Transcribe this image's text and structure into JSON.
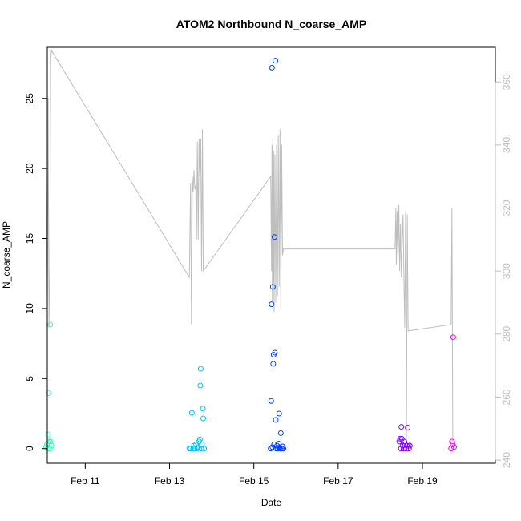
{
  "chart_data": {
    "type": "scatter",
    "title": "ATOM2 Northbound N_coarse_AMP",
    "xlabel": "Date",
    "ylabel": "N_coarse_AMP",
    "y2label": "",
    "xlim": [
      10.1,
      20.73
    ],
    "ylim": [
      -1.05,
      28.65
    ],
    "y2lim": [
      239,
      371
    ],
    "x_ticks": [
      {
        "value": 11,
        "label": "Feb 11"
      },
      {
        "value": 13,
        "label": "Feb 13"
      },
      {
        "value": 15,
        "label": "Feb 15"
      },
      {
        "value": 17,
        "label": "Feb 17"
      },
      {
        "value": 19,
        "label": "Feb 19"
      }
    ],
    "y_ticks": [
      0,
      5,
      10,
      15,
      20,
      25
    ],
    "y2_ticks": [
      240,
      260,
      280,
      300,
      320,
      340,
      360
    ],
    "line_color": "#bebebe",
    "grid": false,
    "series": [
      {
        "color": "#3fffbf",
        "points": [
          [
            10.07,
            0.1
          ],
          [
            10.09,
            0.3
          ],
          [
            10.11,
            0.0
          ],
          [
            10.12,
            1.0
          ],
          [
            10.13,
            0.4
          ],
          [
            10.14,
            3.95
          ],
          [
            10.15,
            0.5
          ],
          [
            10.16,
            0.0
          ],
          [
            10.17,
            8.85
          ],
          [
            10.18,
            0.5
          ],
          [
            10.2,
            0.2
          ]
        ]
      },
      {
        "color": "#00bfff",
        "points": [
          [
            13.47,
            0.0
          ],
          [
            13.5,
            0.0
          ],
          [
            13.53,
            2.55
          ],
          [
            13.56,
            0.0
          ],
          [
            13.58,
            0.2
          ],
          [
            13.6,
            0.0
          ],
          [
            13.63,
            0.3
          ],
          [
            13.66,
            0.0
          ],
          [
            13.68,
            0.1
          ],
          [
            13.7,
            0.5
          ],
          [
            13.72,
            0.65
          ],
          [
            13.73,
            4.5
          ],
          [
            13.74,
            5.7
          ],
          [
            13.75,
            0.0
          ],
          [
            13.77,
            0.3
          ],
          [
            13.79,
            2.85
          ],
          [
            13.8,
            2.15
          ],
          [
            13.82,
            0.0
          ]
        ]
      },
      {
        "color": "#003fff",
        "points": [
          [
            15.4,
            0.0
          ],
          [
            15.41,
            3.4
          ],
          [
            15.42,
            10.3
          ],
          [
            15.43,
            27.2
          ],
          [
            15.44,
            0.1
          ],
          [
            15.45,
            11.55
          ],
          [
            15.46,
            6.05
          ],
          [
            15.47,
            6.7
          ],
          [
            15.48,
            0.3
          ],
          [
            15.49,
            15.1
          ],
          [
            15.5,
            6.85
          ],
          [
            15.51,
            27.7
          ],
          [
            15.52,
            2.05
          ],
          [
            15.53,
            0.0
          ],
          [
            15.55,
            0.2
          ],
          [
            15.57,
            0.0
          ],
          [
            15.59,
            0.35
          ],
          [
            15.6,
            2.5
          ],
          [
            15.61,
            0.1
          ],
          [
            15.62,
            0.0
          ],
          [
            15.64,
            1.1
          ],
          [
            15.66,
            0.0
          ],
          [
            15.68,
            0.15
          ],
          [
            15.7,
            0.0
          ]
        ]
      },
      {
        "color": "#7f00ff",
        "points": [
          [
            18.45,
            0.5
          ],
          [
            18.47,
            0.7
          ],
          [
            18.49,
            0.0
          ],
          [
            18.5,
            1.55
          ],
          [
            18.51,
            0.7
          ],
          [
            18.53,
            0.2
          ],
          [
            18.55,
            0.0
          ],
          [
            18.57,
            0.5
          ],
          [
            18.59,
            0.3
          ],
          [
            18.61,
            0.0
          ],
          [
            18.63,
            0.2
          ],
          [
            18.65,
            1.5
          ],
          [
            18.66,
            0.3
          ],
          [
            18.68,
            0.0
          ],
          [
            18.7,
            0.2
          ]
        ]
      },
      {
        "color": "#ff00ff",
        "points": [
          [
            19.68,
            0.0
          ],
          [
            19.7,
            0.5
          ],
          [
            19.72,
            0.3
          ],
          [
            19.73,
            7.95
          ],
          [
            19.75,
            0.1
          ]
        ]
      }
    ],
    "line": [
      [
        10.07,
        335
      ],
      [
        10.1,
        290
      ],
      [
        10.12,
        355
      ],
      [
        10.14,
        282
      ],
      [
        10.16,
        300
      ],
      [
        10.18,
        367
      ],
      [
        10.2,
        370
      ],
      [
        13.47,
        298
      ],
      [
        13.5,
        328
      ],
      [
        13.52,
        283
      ],
      [
        13.54,
        330
      ],
      [
        13.56,
        325
      ],
      [
        13.58,
        332
      ],
      [
        13.6,
        326
      ],
      [
        13.62,
        327
      ],
      [
        13.64,
        310
      ],
      [
        13.66,
        341
      ],
      [
        13.68,
        310
      ],
      [
        13.7,
        342
      ],
      [
        13.72,
        330
      ],
      [
        13.74,
        342
      ],
      [
        13.76,
        300
      ],
      [
        13.78,
        345
      ],
      [
        13.8,
        300
      ],
      [
        15.4,
        330
      ],
      [
        15.42,
        300
      ],
      [
        15.43,
        340
      ],
      [
        15.44,
        290
      ],
      [
        15.45,
        342
      ],
      [
        15.46,
        296
      ],
      [
        15.47,
        338
      ],
      [
        15.48,
        287
      ],
      [
        15.5,
        337
      ],
      [
        15.52,
        290
      ],
      [
        15.54,
        340
      ],
      [
        15.56,
        292
      ],
      [
        15.58,
        343
      ],
      [
        15.6,
        295
      ],
      [
        15.62,
        345
      ],
      [
        15.64,
        288
      ],
      [
        15.66,
        340
      ],
      [
        15.68,
        305
      ],
      [
        15.7,
        307
      ],
      [
        18.35,
        307
      ],
      [
        18.37,
        320
      ],
      [
        18.38,
        302
      ],
      [
        18.4,
        319
      ],
      [
        18.42,
        303
      ],
      [
        18.44,
        321
      ],
      [
        18.46,
        300
      ],
      [
        18.48,
        315
      ],
      [
        18.5,
        298
      ],
      [
        18.52,
        310
      ],
      [
        18.54,
        318
      ],
      [
        18.56,
        298
      ],
      [
        18.58,
        282
      ],
      [
        18.6,
        319
      ],
      [
        18.62,
        246
      ],
      [
        18.64,
        318
      ],
      [
        18.66,
        281
      ],
      [
        19.68,
        283
      ],
      [
        19.7,
        320
      ],
      [
        19.72,
        246
      ]
    ]
  }
}
